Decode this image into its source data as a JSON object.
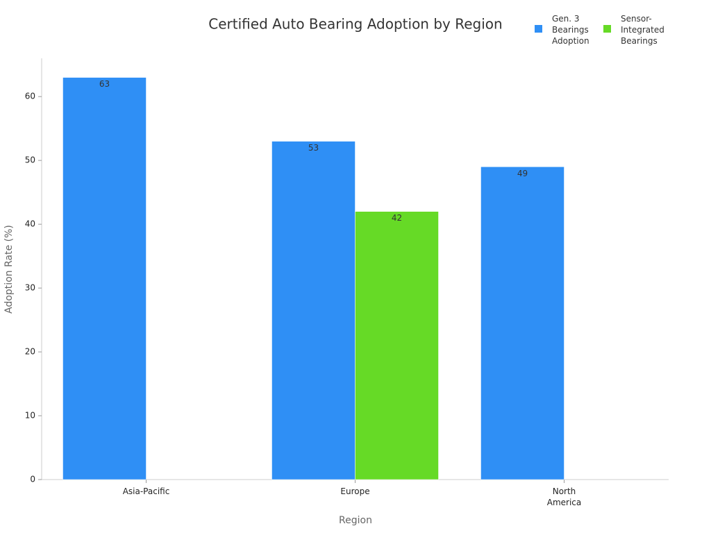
{
  "chart_data": {
    "type": "bar",
    "title": "Certified Auto Bearing Adoption by Region",
    "x_label": "Region",
    "y_label": "Adoption Rate (%)",
    "categories": [
      "Asia-Pacific",
      "Europe",
      "North America"
    ],
    "series": [
      {
        "name": "Gen. 3 Bearings Adoption",
        "color": "#2f8ff5",
        "values": [
          63,
          53,
          49
        ]
      },
      {
        "name": "Sensor-Integrated Bearings",
        "color": "#66da26",
        "values": [
          null,
          42,
          null
        ]
      }
    ],
    "ylim": [
      0,
      66
    ],
    "yticks": [
      0,
      10,
      20,
      30,
      40,
      50,
      60
    ],
    "grid": false,
    "legend": "top-right"
  }
}
